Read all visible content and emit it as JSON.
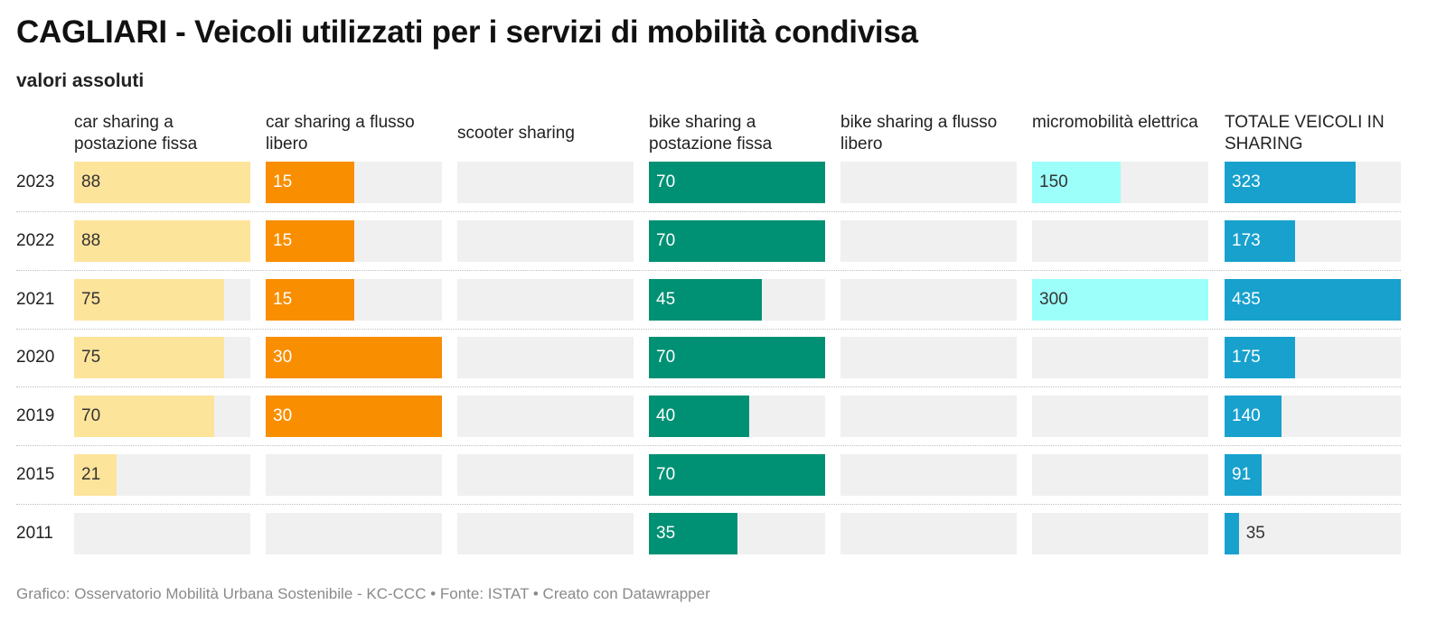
{
  "title": "CAGLIARI - Veicoli utilizzati per i servizi di mobilità condivisa",
  "subtitle": "valori assoluti",
  "footer": "Grafico: Osservatorio Mobilità Urbana Sostenibile - KC-CCC • Fonte: ISTAT • Creato con Datawrapper",
  "chart_data": {
    "type": "bar",
    "categories": [
      "2023",
      "2022",
      "2021",
      "2020",
      "2019",
      "2015",
      "2011"
    ],
    "series": [
      {
        "name": "car sharing a postazione fissa",
        "max": 88,
        "color": "#fde49b",
        "label_color": "#333333",
        "values": [
          88,
          88,
          75,
          75,
          70,
          21,
          null
        ]
      },
      {
        "name": "car sharing a flusso libero",
        "max": 30,
        "color": "#f88e00",
        "label_color": "#ffffff",
        "values": [
          15,
          15,
          15,
          30,
          30,
          null,
          null
        ]
      },
      {
        "name": "scooter sharing",
        "max": 1,
        "color": "#999999",
        "label_color": "#333333",
        "values": [
          null,
          null,
          null,
          null,
          null,
          null,
          null
        ]
      },
      {
        "name": "bike sharing a postazione fissa",
        "max": 70,
        "color": "#009073",
        "label_color": "#ffffff",
        "values": [
          70,
          70,
          45,
          70,
          40,
          70,
          35
        ]
      },
      {
        "name": "bike sharing a flusso libero",
        "max": 1,
        "color": "#999999",
        "label_color": "#333333",
        "values": [
          null,
          null,
          null,
          null,
          null,
          null,
          null
        ]
      },
      {
        "name": "micromobilità elettrica",
        "max": 300,
        "color": "#9cfffa",
        "label_color": "#333333",
        "values": [
          150,
          null,
          300,
          null,
          null,
          null,
          null
        ]
      },
      {
        "name": "TOTALE VEICOLI IN SHARING",
        "max": 435,
        "color": "#18a1cd",
        "label_color": "#ffffff",
        "values": [
          323,
          173,
          435,
          175,
          140,
          91,
          35
        ]
      }
    ]
  }
}
